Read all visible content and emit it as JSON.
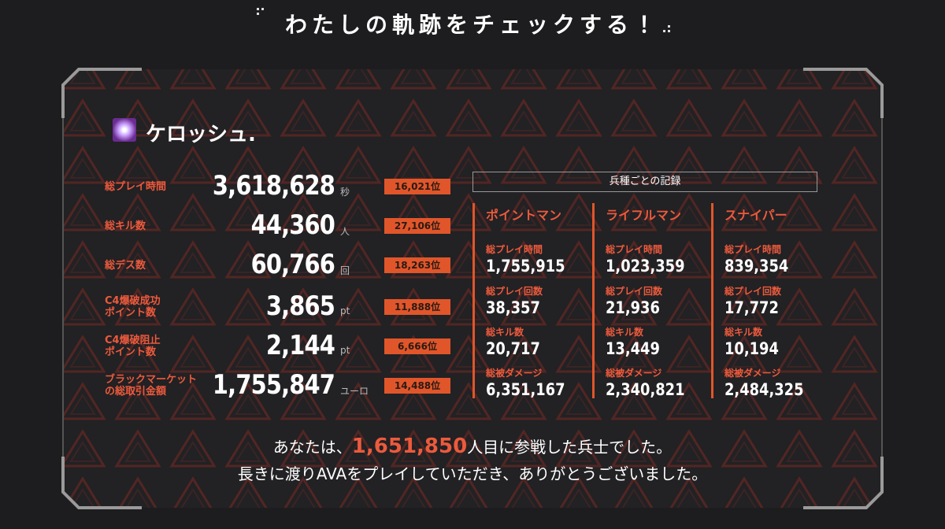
{
  "header": {
    "title": "わたしの軌跡をチェックする！"
  },
  "player": {
    "name": "ケロッシュ."
  },
  "stats": [
    {
      "label": [
        "総プレイ時間"
      ],
      "value": "3,618,628",
      "unit": "秒",
      "rank": "16,021位"
    },
    {
      "label": [
        "総キル数"
      ],
      "value": "44,360",
      "unit": "人",
      "rank": "27,106位"
    },
    {
      "label": [
        "総デス数"
      ],
      "value": "60,766",
      "unit": "回",
      "rank": "18,263位"
    },
    {
      "label": [
        "C4爆破成功",
        "ポイント数"
      ],
      "value": "3,865",
      "unit": "pt",
      "rank": "11,888位"
    },
    {
      "label": [
        "C4爆破阻止",
        "ポイント数"
      ],
      "value": "2,144",
      "unit": "pt",
      "rank": "6,666位"
    },
    {
      "label": [
        "ブラックマーケット",
        "の総取引金額"
      ],
      "value": "1,755,847",
      "unit": "ユーロ",
      "rank": "14,488位"
    }
  ],
  "classes": {
    "title": "兵種ごとの記録",
    "columns": [
      {
        "name": "ポイントマン",
        "stats": [
          {
            "label": "総プレイ時間",
            "value": "1,755,915"
          },
          {
            "label": "総プレイ回数",
            "value": "38,357"
          },
          {
            "label": "総キル数",
            "value": "20,717"
          },
          {
            "label": "総被ダメージ",
            "value": "6,351,167"
          }
        ]
      },
      {
        "name": "ライフルマン",
        "stats": [
          {
            "label": "総プレイ時間",
            "value": "1,023,359"
          },
          {
            "label": "総プレイ回数",
            "value": "21,936"
          },
          {
            "label": "総キル数",
            "value": "13,449"
          },
          {
            "label": "総被ダメージ",
            "value": "2,340,821"
          }
        ]
      },
      {
        "name": "スナイパー",
        "stats": [
          {
            "label": "総プレイ時間",
            "value": "839,354"
          },
          {
            "label": "総プレイ回数",
            "value": "17,772"
          },
          {
            "label": "総キル数",
            "value": "10,194"
          },
          {
            "label": "総被ダメージ",
            "value": "2,484,325"
          }
        ]
      }
    ]
  },
  "footer": {
    "line1": [
      "あなたは、",
      "1,651,850",
      "人目に参戦した兵士でした。"
    ],
    "line2": "長きに渡りAVAをプレイしていただき、ありがとうございました。"
  }
}
